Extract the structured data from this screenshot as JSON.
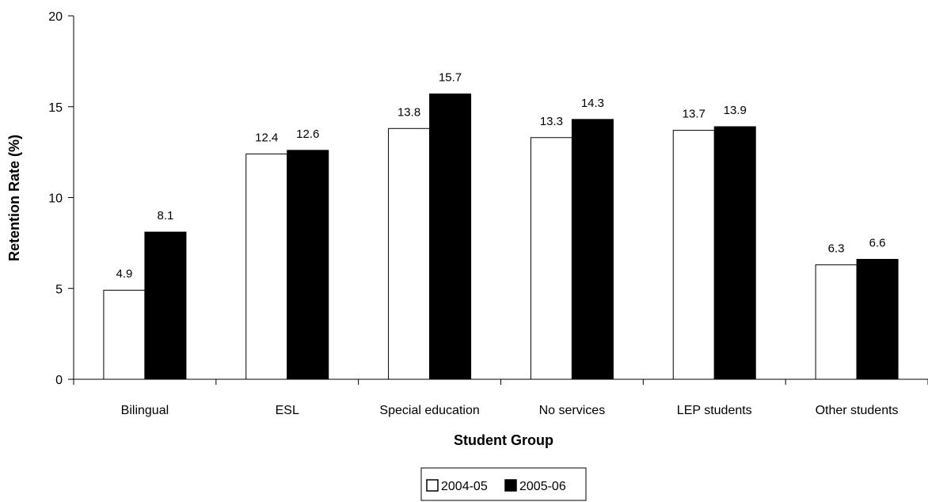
{
  "chart_data": {
    "type": "bar",
    "title": "",
    "xlabel": "Student Group",
    "ylabel": "Retention Rate (%)",
    "ylim": [
      0,
      20
    ],
    "yticks": [
      0,
      5,
      10,
      15,
      20
    ],
    "categories": [
      "Bilingual",
      "ESL",
      "Special education",
      "No services",
      "LEP students",
      "Other students"
    ],
    "series": [
      {
        "name": "2004-05",
        "color": "#ffffff",
        "values": [
          4.9,
          12.4,
          13.8,
          13.3,
          13.7,
          6.3
        ]
      },
      {
        "name": "2005-06",
        "color": "#000000",
        "values": [
          8.1,
          12.6,
          15.7,
          14.3,
          13.9,
          6.6
        ]
      }
    ],
    "grid": false,
    "legend": "bottom-center"
  }
}
